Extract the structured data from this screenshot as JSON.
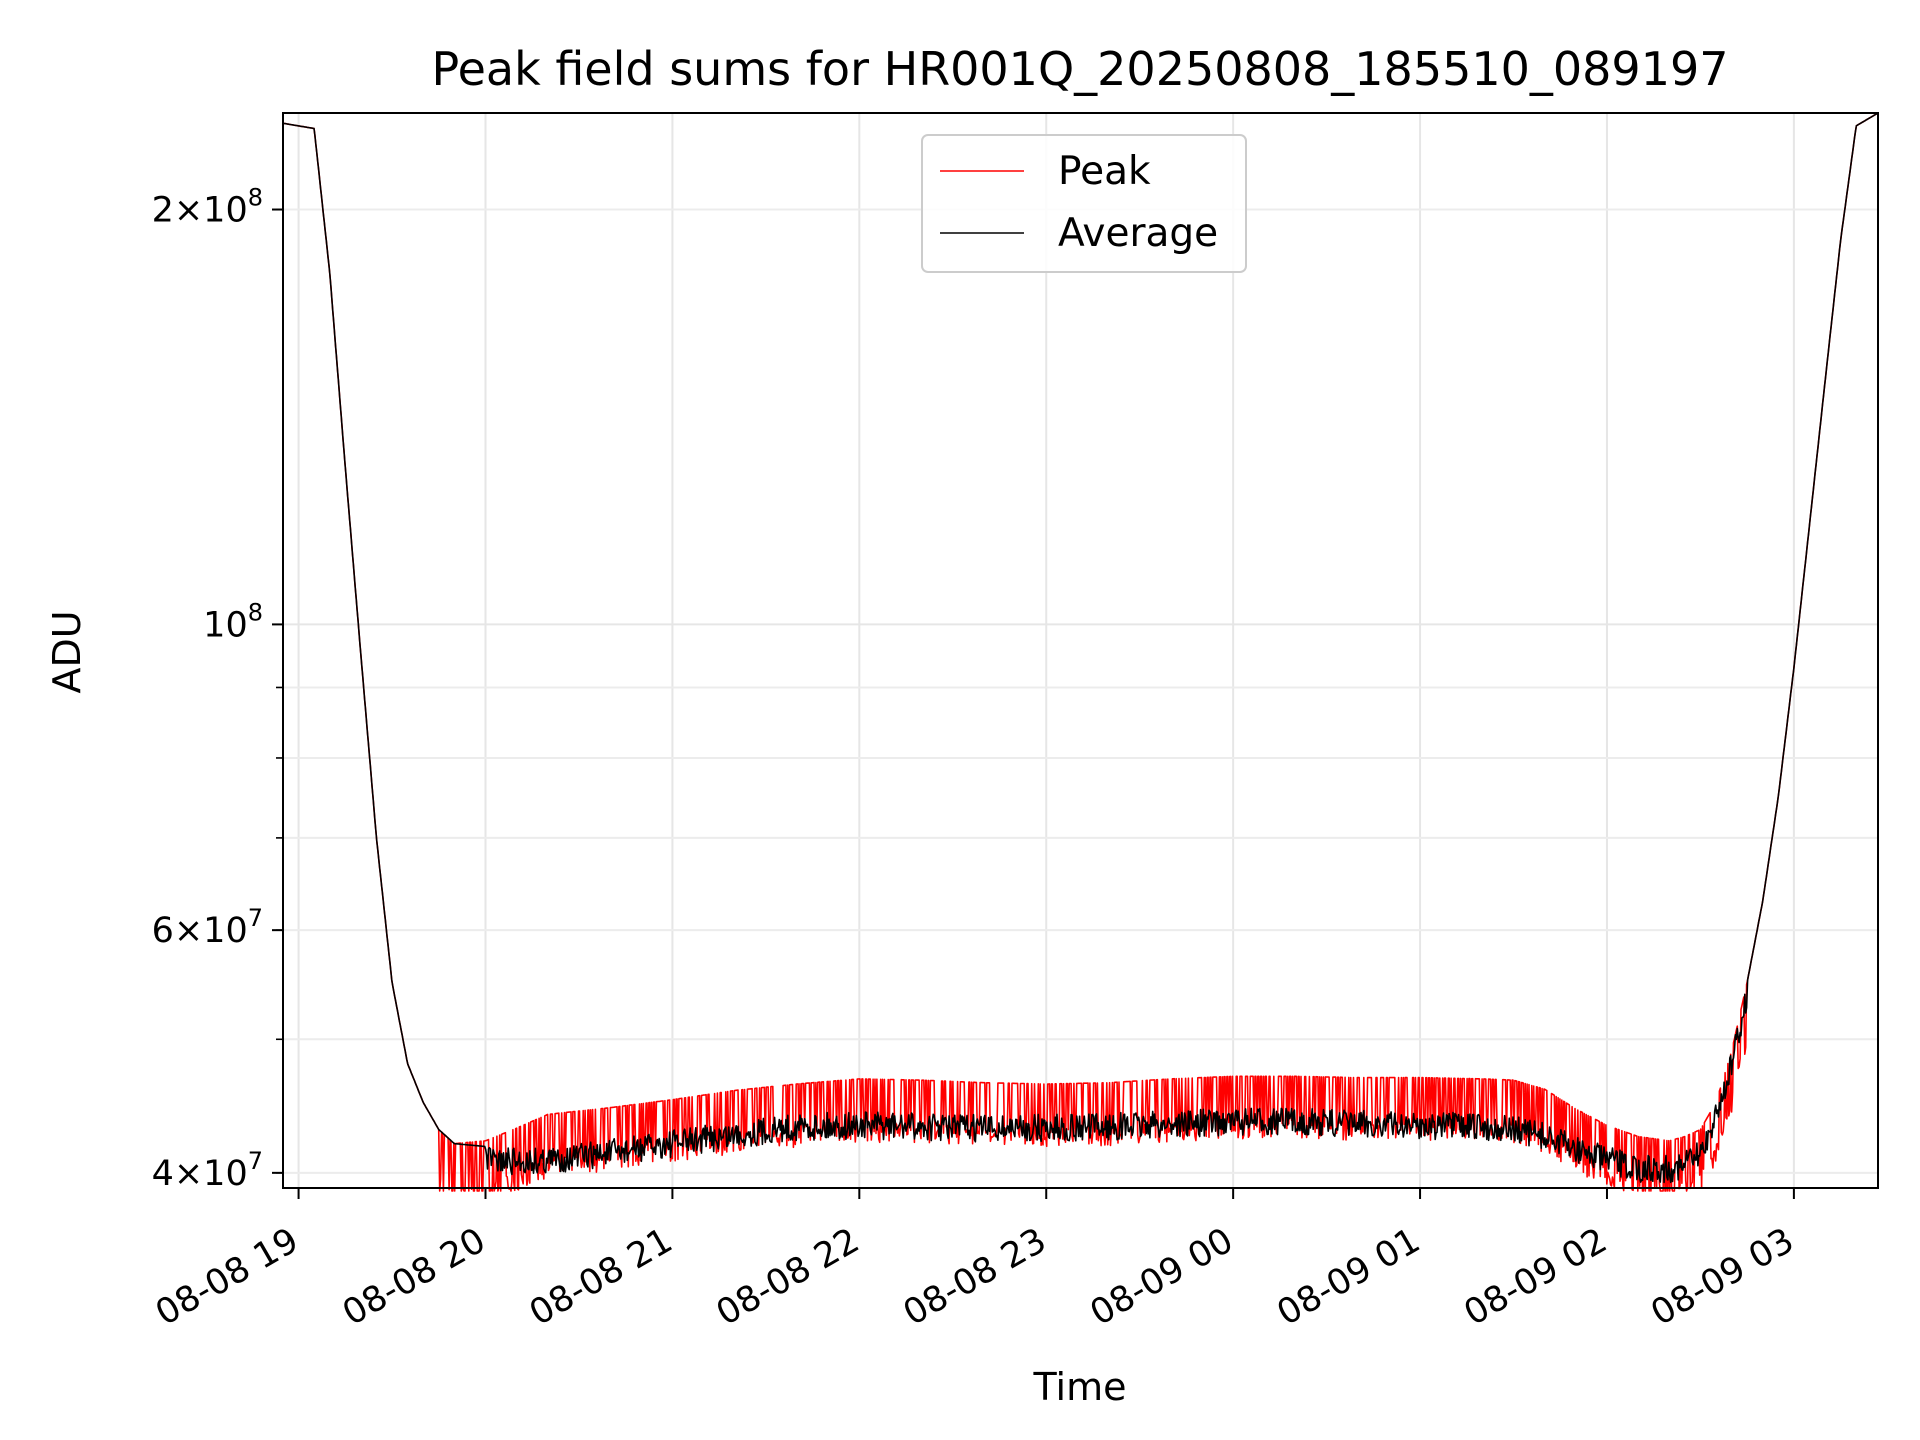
{
  "chart_data": {
    "type": "line",
    "title": "Peak field sums for HR001Q_20250808_185510_089197",
    "xlabel": "Time",
    "ylabel": "ADU",
    "yscale": "log",
    "ylim": [
      39000000,
      235000000
    ],
    "xlim": [
      "2025-08-08 18:55",
      "2025-08-09 03:27"
    ],
    "grid": true,
    "legend_position": "top-center",
    "x_ticks": [
      "08-08 19",
      "08-08 20",
      "08-08 21",
      "08-08 22",
      "08-08 23",
      "08-09 00",
      "08-09 01",
      "08-09 02",
      "08-09 03"
    ],
    "x_tick_values": [
      "2025-08-08 19:00",
      "2025-08-08 20:00",
      "2025-08-08 21:00",
      "2025-08-08 22:00",
      "2025-08-08 23:00",
      "2025-08-09 00:00",
      "2025-08-09 01:00",
      "2025-08-09 02:00",
      "2025-08-09 03:00"
    ],
    "y_ticks": [
      {
        "value": 200000000,
        "mantissa": "2",
        "exponent": "8"
      },
      {
        "value": 100000000,
        "mantissa": "",
        "exponent": "8"
      },
      {
        "value": 60000000,
        "mantissa": "6",
        "exponent": "7"
      },
      {
        "value": 40000000,
        "mantissa": "4",
        "exponent": "7"
      }
    ],
    "x": [
      "2025-08-08 18:55",
      "2025-08-08 19:05",
      "2025-08-08 19:10",
      "2025-08-08 19:15",
      "2025-08-08 19:20",
      "2025-08-08 19:25",
      "2025-08-08 19:30",
      "2025-08-08 19:35",
      "2025-08-08 19:40",
      "2025-08-08 19:45",
      "2025-08-08 19:50",
      "2025-08-08 20:00",
      "2025-08-08 20:10",
      "2025-08-08 20:20",
      "2025-08-08 20:40",
      "2025-08-08 21:00",
      "2025-08-08 21:20",
      "2025-08-08 21:40",
      "2025-08-08 22:00",
      "2025-08-08 22:20",
      "2025-08-08 22:40",
      "2025-08-08 23:00",
      "2025-08-08 23:20",
      "2025-08-08 23:40",
      "2025-08-09 00:00",
      "2025-08-09 00:20",
      "2025-08-09 00:40",
      "2025-08-09 01:00",
      "2025-08-09 01:20",
      "2025-08-09 01:30",
      "2025-08-09 01:40",
      "2025-08-09 01:50",
      "2025-08-09 02:00",
      "2025-08-09 02:10",
      "2025-08-09 02:20",
      "2025-08-09 02:25",
      "2025-08-09 02:30",
      "2025-08-09 02:35",
      "2025-08-09 02:40",
      "2025-08-09 02:45",
      "2025-08-09 02:50",
      "2025-08-09 02:55",
      "2025-08-09 03:00",
      "2025-08-09 03:05",
      "2025-08-09 03:10",
      "2025-08-09 03:15",
      "2025-08-09 03:20",
      "2025-08-09 03:27"
    ],
    "series": [
      {
        "name": "Peak",
        "color": "#ff0000",
        "values": [
          231000000,
          229000000,
          180000000,
          130000000,
          95000000,
          70000000,
          55000000,
          48000000,
          45000000,
          43000000,
          42000000,
          42200000,
          43100000,
          44100000,
          44600000,
          45200000,
          45900000,
          46400000,
          46800000,
          46700000,
          46500000,
          46400000,
          46500000,
          46800000,
          47000000,
          47000000,
          46900000,
          46900000,
          46800000,
          46700000,
          46000000,
          44500000,
          43300000,
          42500000,
          42200000,
          42500000,
          43000000,
          45000000,
          49000000,
          55000000,
          63000000,
          75000000,
          93000000,
          118000000,
          150000000,
          190000000,
          230000000,
          235000000
        ],
        "spike_band": [
          "2025-08-08 19:45",
          "2025-08-09 02:45"
        ]
      },
      {
        "name": "Average",
        "color": "#000000",
        "values": [
          231000000,
          229000000,
          180000000,
          130000000,
          95000000,
          70000000,
          55000000,
          48000000,
          45000000,
          43000000,
          42000000,
          41800000,
          41700000,
          41800000,
          42300000,
          43000000,
          43600000,
          44200000,
          44300000,
          44200000,
          44100000,
          44100000,
          44200000,
          44400000,
          44600000,
          44600000,
          44400000,
          44300000,
          44200000,
          44000000,
          43500000,
          42600000,
          41800000,
          41200000,
          41200000,
          41500000,
          42200000,
          45000000,
          49000000,
          55000000,
          63000000,
          75000000,
          93000000,
          118000000,
          150000000,
          190000000,
          230000000,
          235000000
        ],
        "noise_band": [
          "2025-08-08 20:00",
          "2025-08-09 02:45"
        ]
      }
    ]
  }
}
